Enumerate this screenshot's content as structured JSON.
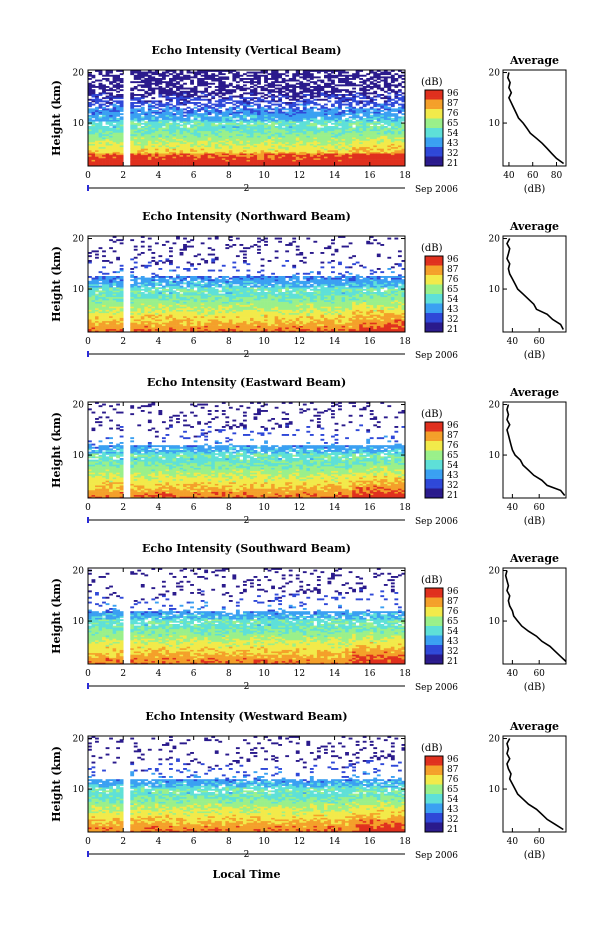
{
  "shared": {
    "unit_label": "(dB)",
    "avg_title": "Average",
    "ylabel": "Height (km)",
    "date_label": "Sep 2006",
    "day_label": "2",
    "xlabel": "Local Time",
    "x_ticks": [
      "0",
      "2",
      "4",
      "6",
      "8",
      "10",
      "12",
      "14",
      "16",
      "18"
    ],
    "y_ticks": [
      "10",
      "20"
    ],
    "colorbar_ticks": [
      "96",
      "87",
      "76",
      "65",
      "54",
      "43",
      "32",
      "21"
    ],
    "colors": [
      "#2a1a8c",
      "#2f48d8",
      "#3aa0f2",
      "#5ee0d8",
      "#9af08a",
      "#f2ea4a",
      "#f4a02a",
      "#e0301e"
    ]
  },
  "chart_data": [
    {
      "type": "heatmap",
      "title": "Echo Intensity (Vertical Beam)",
      "xlim": [
        0,
        18
      ],
      "ylim": [
        1.5,
        20.5
      ],
      "colorbar_ticks": [
        "96",
        "87",
        "76",
        "65",
        "54",
        "43",
        "32",
        "21"
      ],
      "avg_profile": {
        "title": "Average",
        "xlabel": "(dB)",
        "x_ticks": [
          "40",
          "60",
          "80"
        ],
        "xlim": [
          35,
          88
        ],
        "height": [
          2,
          3,
          4,
          5,
          6,
          7,
          8,
          9,
          10,
          11,
          12,
          13,
          14,
          15,
          16,
          17,
          18,
          19,
          20
        ],
        "db": [
          86,
          80,
          76,
          72,
          68,
          63,
          58,
          55,
          52,
          48,
          46,
          44,
          42,
          40,
          42,
          40,
          41,
          39,
          40
        ]
      }
    },
    {
      "type": "heatmap",
      "title": "Echo Intensity (Northward Beam)",
      "xlim": [
        0,
        18
      ],
      "ylim": [
        1.5,
        20.5
      ],
      "colorbar_ticks": [
        "96",
        "87",
        "76",
        "65",
        "54",
        "43",
        "32",
        "21"
      ],
      "avg_profile": {
        "title": "Average",
        "xlabel": "(dB)",
        "x_ticks": [
          "40",
          "60"
        ],
        "xlim": [
          33,
          80
        ],
        "height": [
          2,
          3,
          4,
          5,
          6,
          7,
          8,
          9,
          10,
          11,
          12,
          13,
          14,
          15,
          16,
          17,
          18,
          19,
          20
        ],
        "db": [
          78,
          76,
          70,
          66,
          58,
          56,
          52,
          48,
          44,
          42,
          40,
          38,
          37,
          38,
          36,
          37,
          38,
          36,
          38
        ]
      }
    },
    {
      "type": "heatmap",
      "title": "Echo Intensity (Eastward Beam)",
      "xlim": [
        0,
        18
      ],
      "ylim": [
        1.5,
        20.5
      ],
      "colorbar_ticks": [
        "96",
        "87",
        "76",
        "65",
        "54",
        "43",
        "32",
        "21"
      ],
      "avg_profile": {
        "title": "Average",
        "xlabel": "(dB)",
        "x_ticks": [
          "40",
          "60"
        ],
        "xlim": [
          33,
          80
        ],
        "height": [
          2,
          3,
          4,
          5,
          6,
          7,
          8,
          9,
          10,
          11,
          12,
          13,
          14,
          15,
          16,
          17,
          18,
          19,
          20
        ],
        "db": [
          79,
          76,
          66,
          62,
          56,
          52,
          48,
          46,
          42,
          40,
          39,
          38,
          37,
          36,
          38,
          36,
          37,
          36,
          37
        ]
      }
    },
    {
      "type": "heatmap",
      "title": "Echo Intensity (Southward Beam)",
      "xlim": [
        0,
        18
      ],
      "ylim": [
        1.5,
        20.5
      ],
      "colorbar_ticks": [
        "96",
        "87",
        "76",
        "65",
        "54",
        "43",
        "32",
        "21"
      ],
      "avg_profile": {
        "title": "Average",
        "xlabel": "(dB)",
        "x_ticks": [
          "40",
          "60"
        ],
        "xlim": [
          33,
          80
        ],
        "height": [
          2,
          3,
          4,
          5,
          6,
          7,
          8,
          9,
          10,
          11,
          12,
          13,
          14,
          15,
          16,
          17,
          18,
          19,
          20
        ],
        "db": [
          80,
          76,
          72,
          68,
          62,
          58,
          52,
          47,
          44,
          41,
          40,
          38,
          37,
          38,
          36,
          37,
          36,
          35,
          36
        ]
      }
    },
    {
      "type": "heatmap",
      "title": "Echo Intensity (Westward Beam)",
      "xlim": [
        0,
        18
      ],
      "ylim": [
        1.5,
        20.5
      ],
      "colorbar_ticks": [
        "96",
        "87",
        "76",
        "65",
        "54",
        "43",
        "32",
        "21"
      ],
      "avg_profile": {
        "title": "Average",
        "xlabel": "(dB)",
        "x_ticks": [
          "40",
          "60"
        ],
        "xlim": [
          33,
          80
        ],
        "height": [
          2,
          3,
          4,
          5,
          6,
          7,
          8,
          9,
          10,
          11,
          12,
          13,
          14,
          15,
          16,
          17,
          18,
          19,
          20
        ],
        "db": [
          78,
          72,
          66,
          62,
          58,
          52,
          48,
          44,
          42,
          40,
          38,
          39,
          37,
          36,
          38,
          36,
          37,
          36,
          38
        ]
      }
    }
  ]
}
